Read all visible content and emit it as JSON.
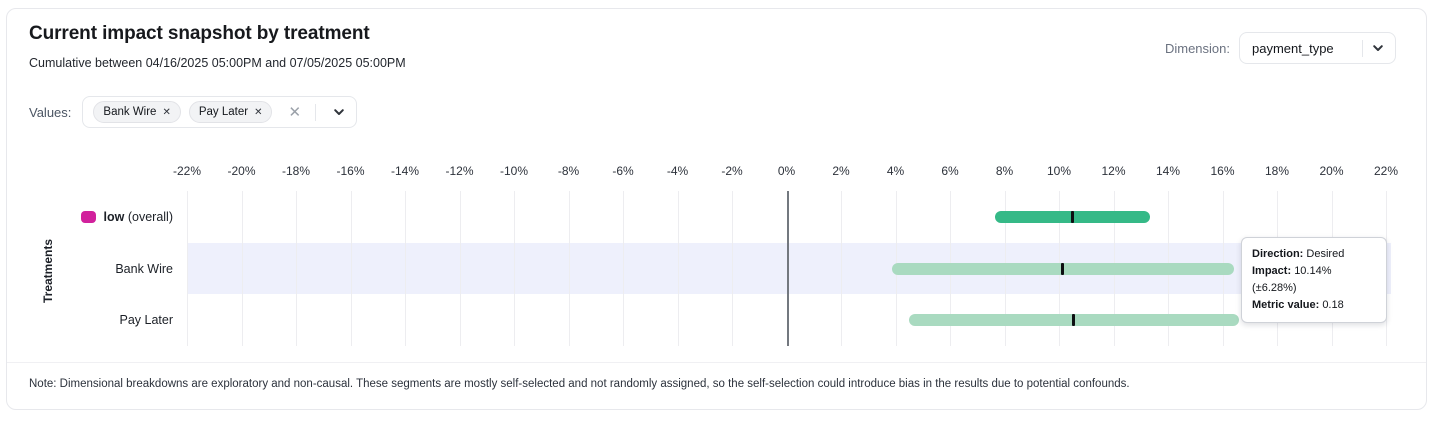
{
  "header": {
    "title": "Current impact snapshot by treatment",
    "subtitle": "Cumulative between 04/16/2025 05:00PM and 07/05/2025 05:00PM"
  },
  "dimension": {
    "label": "Dimension:",
    "value": "payment_type"
  },
  "values": {
    "label": "Values:",
    "chips": [
      {
        "label": "Bank Wire"
      },
      {
        "label": "Pay Later"
      }
    ]
  },
  "chart_data": {
    "type": "bar",
    "subtype": "horizontal-interval-plot",
    "ylabel": "Treatments",
    "x_axis": {
      "min": -22,
      "max": 22,
      "step": 2,
      "unit": "%",
      "tick_labels": [
        "-22%",
        "-20%",
        "-18%",
        "-16%",
        "-14%",
        "-12%",
        "-10%",
        "-8%",
        "-6%",
        "-4%",
        "-2%",
        "0%",
        "2%",
        "4%",
        "6%",
        "8%",
        "10%",
        "12%",
        "14%",
        "16%",
        "18%",
        "20%",
        "22%"
      ]
    },
    "rows": [
      {
        "label": "low",
        "suffix": "(overall)",
        "bold": true,
        "impact_pct": 10.5,
        "ci_pct": 2.85,
        "range_pct": [
          7.65,
          13.35
        ],
        "bar_color": "#35b987",
        "swatch_color": "#d1219c",
        "highlighted": false
      },
      {
        "label": "Bank Wire",
        "impact_pct": 10.14,
        "ci_pct": 6.28,
        "range_pct": [
          3.86,
          16.42
        ],
        "bar_color": "#a9dac0",
        "highlighted": true
      },
      {
        "label": "Pay Later",
        "impact_pct": 10.55,
        "ci_pct": 6.05,
        "range_pct": [
          4.5,
          16.6
        ],
        "bar_color": "#a9dac0",
        "highlighted": false
      }
    ],
    "grid": true,
    "zero_line": true,
    "highlight_band_color": "#eef0fc"
  },
  "tooltip": {
    "direction_label": "Direction:",
    "direction_value": "Desired",
    "impact_label": "Impact:",
    "impact_value": "10.14% (±6.28%)",
    "metric_label": "Metric value:",
    "metric_value": "0.18"
  },
  "note": "Note: Dimensional breakdowns are exploratory and non-causal. These segments are mostly self-selected and not randomly assigned, so the self-selection could introduce bias in the results due to potential confounds.",
  "colors": {
    "overall_bar": "#35b987",
    "segment_bar": "#a9dac0",
    "legend_swatch": "#d1219c",
    "highlight_band": "#eef0fc",
    "point_estimate": "#0d0f12"
  }
}
